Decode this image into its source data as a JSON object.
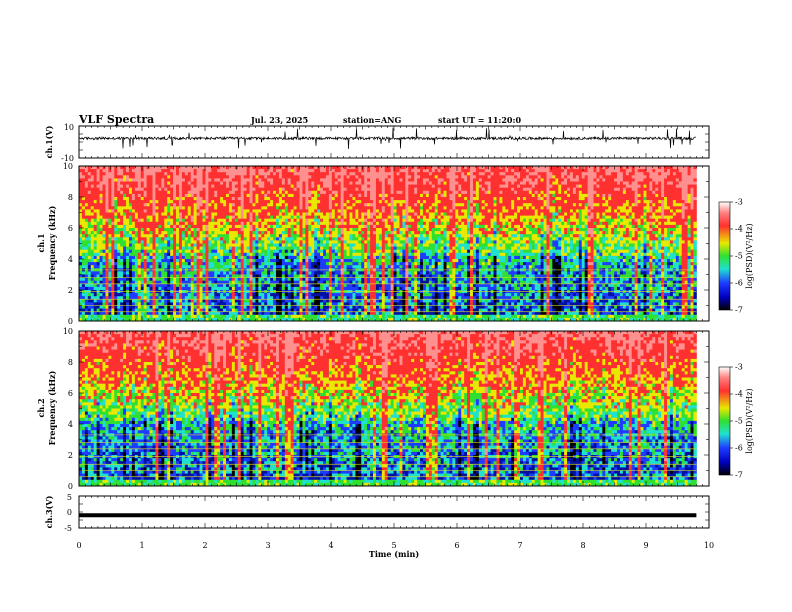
{
  "header": {
    "title": "VLF Spectra",
    "date": "Jul. 23, 2025",
    "station": "station=ANG",
    "start": "start UT = 11:20:0"
  },
  "chart_data": [
    {
      "name": "ch1-waveform",
      "type": "line",
      "ylabel": "ch.1(V)",
      "ylim": [
        -10,
        10
      ],
      "yticks": [
        "10",
        "-10"
      ],
      "xlim": [
        0,
        10
      ],
      "description_values": "noisy waveform around about +2.5 V with spikes to +10 V"
    },
    {
      "name": "ch1-spectrogram",
      "type": "heatmap",
      "ylabel_top": "ch.1",
      "ylabel": "Frequency (kHz)",
      "ylim": [
        0,
        10
      ],
      "yticks": [
        "0",
        "2",
        "4",
        "6",
        "8",
        "10"
      ],
      "xlim": [
        0,
        10
      ],
      "colorbar": {
        "label": "log(PSD)(V²/Hz)",
        "ticks": [
          "-3",
          "-4",
          "-5",
          "-6",
          "-7"
        ],
        "range": [
          -7,
          -3
        ]
      }
    },
    {
      "name": "ch2-spectrogram",
      "type": "heatmap",
      "ylabel_top": "ch.2",
      "ylabel": "Frequency (kHz)",
      "ylim": [
        0,
        10
      ],
      "yticks": [
        "0",
        "2",
        "4",
        "6",
        "8",
        "10"
      ],
      "xlim": [
        0,
        10
      ],
      "colorbar": {
        "label": "log(PSD)(V²/Hz)",
        "ticks": [
          "-3",
          "-4",
          "-5",
          "-6",
          "-7"
        ],
        "range": [
          -7,
          -3
        ]
      }
    },
    {
      "name": "ch3-waveform",
      "type": "line",
      "ylabel": "ch.3(V)",
      "ylim": [
        -5,
        5
      ],
      "yticks": [
        "5",
        "0",
        "-5"
      ],
      "xlim": [
        0,
        10
      ],
      "constant_value": -1
    }
  ],
  "xaxis": {
    "label": "Time (min)",
    "ticks": [
      "0",
      "1",
      "2",
      "3",
      "4",
      "5",
      "6",
      "7",
      "8",
      "9",
      "10"
    ],
    "range": [
      0,
      10
    ],
    "data_end": 9.8
  },
  "colors": {
    "red": "#ff3030",
    "yellow": "#e8e800",
    "green": "#30e030",
    "cyan": "#20e0d0",
    "blue": "#1e3cff",
    "black": "#000000"
  }
}
